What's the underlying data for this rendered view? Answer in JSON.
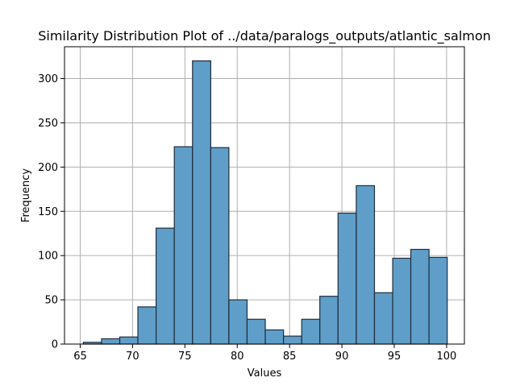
{
  "chart_data": {
    "type": "bar",
    "subtype": "histogram",
    "title": "Similarity Distribution Plot of ../data/paralogs_outputs/atlantic_salmon",
    "xlabel": "Values",
    "ylabel": "Frequency",
    "xlim": [
      63.5,
      101.7
    ],
    "ylim": [
      0,
      336
    ],
    "xticks": [
      65,
      70,
      75,
      80,
      85,
      90,
      95,
      100
    ],
    "yticks": [
      0,
      50,
      100,
      150,
      200,
      250,
      300
    ],
    "grid": true,
    "bar_color": "#5f9ec9",
    "edge_color": "#1f2d3a",
    "bins": [
      {
        "x0": 65.3,
        "x1": 67.04,
        "count": 2
      },
      {
        "x0": 67.04,
        "x1": 68.78,
        "count": 6
      },
      {
        "x0": 68.78,
        "x1": 70.51,
        "count": 8
      },
      {
        "x0": 70.51,
        "x1": 72.25,
        "count": 42
      },
      {
        "x0": 72.25,
        "x1": 73.99,
        "count": 131
      },
      {
        "x0": 73.99,
        "x1": 75.73,
        "count": 223
      },
      {
        "x0": 75.73,
        "x1": 77.47,
        "count": 320
      },
      {
        "x0": 77.47,
        "x1": 79.2,
        "count": 222
      },
      {
        "x0": 79.2,
        "x1": 80.94,
        "count": 50
      },
      {
        "x0": 80.94,
        "x1": 82.68,
        "count": 28
      },
      {
        "x0": 82.68,
        "x1": 84.42,
        "count": 16
      },
      {
        "x0": 84.42,
        "x1": 86.16,
        "count": 9
      },
      {
        "x0": 86.16,
        "x1": 87.89,
        "count": 28
      },
      {
        "x0": 87.89,
        "x1": 89.63,
        "count": 54
      },
      {
        "x0": 89.63,
        "x1": 91.37,
        "count": 148
      },
      {
        "x0": 91.37,
        "x1": 93.11,
        "count": 179
      },
      {
        "x0": 93.11,
        "x1": 94.85,
        "count": 58
      },
      {
        "x0": 94.85,
        "x1": 96.58,
        "count": 97
      },
      {
        "x0": 96.58,
        "x1": 98.32,
        "count": 107
      },
      {
        "x0": 98.32,
        "x1": 100.06,
        "count": 98
      }
    ]
  }
}
